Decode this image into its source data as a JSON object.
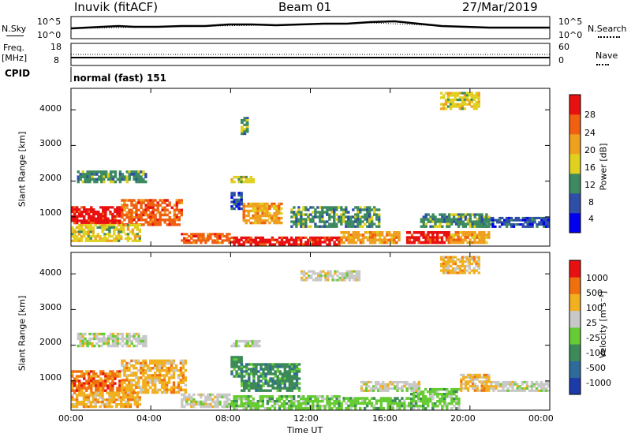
{
  "header": {
    "station": "Inuvik (fitACF)",
    "beam": "Beam 01",
    "date": "27/Mar/2019"
  },
  "top_panels": {
    "nsky_label": "N.Sky",
    "nsky_ticks": [
      "10^5",
      "10^0"
    ],
    "nsearch_label": "N.Search",
    "nsearch_ticks": [
      "10^5",
      "10^0"
    ],
    "freq_label": "Freq.",
    "freq_unit": "[MHz]",
    "freq_ticks": [
      "18",
      "8"
    ],
    "nave_label": "Nave",
    "nave_ticks": [
      "60",
      "0"
    ],
    "cpid_label": "CPID",
    "cpid_value": "normal (fast) 151"
  },
  "chart_data": [
    {
      "type": "heatmap",
      "name": "power",
      "ylabel": "Slant Range [km]",
      "ylim": [
        180,
        4600
      ],
      "yticks": [
        "1000",
        "2000",
        "3000",
        "4000"
      ],
      "colorbar_label": "Power [dB]",
      "colorbar_ticks": [
        "28",
        "24",
        "20",
        "16",
        "12",
        "8",
        "4"
      ],
      "colors": [
        "#0000ee",
        "#2e4ea8",
        "#3d8a60",
        "#e0d020",
        "#f0a020",
        "#f06010",
        "#e81010"
      ],
      "blobs": [
        {
          "t0": 0.0,
          "t1": 2.5,
          "r0": 800,
          "r1": 1300,
          "level": 6
        },
        {
          "t0": 2.5,
          "t1": 5.6,
          "r0": 750,
          "r1": 1500,
          "level": 5
        },
        {
          "t0": 0.0,
          "t1": 3.5,
          "r0": 300,
          "r1": 800,
          "level": 3
        },
        {
          "t0": 0.3,
          "t1": 3.8,
          "r0": 1950,
          "r1": 2300,
          "level": 2
        },
        {
          "t0": 8.0,
          "t1": 9.2,
          "r0": 1950,
          "r1": 2150,
          "level": 3
        },
        {
          "t0": 8.6,
          "t1": 10.6,
          "r0": 800,
          "r1": 1400,
          "level": 4
        },
        {
          "t0": 8.0,
          "t1": 13.5,
          "r0": 200,
          "r1": 450,
          "level": 6
        },
        {
          "t0": 13.5,
          "t1": 16.5,
          "r0": 250,
          "r1": 600,
          "level": 4
        },
        {
          "t0": 16.8,
          "t1": 19.0,
          "r0": 250,
          "r1": 600,
          "level": 6
        },
        {
          "t0": 19.0,
          "t1": 21.0,
          "r0": 250,
          "r1": 600,
          "level": 4
        },
        {
          "t0": 20.5,
          "t1": 24.0,
          "r0": 700,
          "r1": 1000,
          "level": 1
        },
        {
          "t0": 17.5,
          "t1": 21.0,
          "r0": 700,
          "r1": 1100,
          "level": 2
        },
        {
          "t0": 11.0,
          "t1": 15.5,
          "r0": 700,
          "r1": 1300,
          "level": 2
        },
        {
          "t0": 8.0,
          "t1": 8.6,
          "r0": 1200,
          "r1": 1700,
          "level": 1
        },
        {
          "t0": 5.5,
          "t1": 8.0,
          "r0": 250,
          "r1": 550,
          "level": 5
        },
        {
          "t0": 18.5,
          "t1": 20.5,
          "r0": 4000,
          "r1": 4500,
          "level": 3
        },
        {
          "t0": 8.5,
          "t1": 8.9,
          "r0": 3300,
          "r1": 3800,
          "level": 2
        }
      ]
    },
    {
      "type": "heatmap",
      "name": "velocity",
      "ylabel": "Slant Range [km]",
      "ylim": [
        180,
        4600
      ],
      "yticks": [
        "1000",
        "2000",
        "3000",
        "4000"
      ],
      "xlabel": "Time UT",
      "xticks": [
        "00:00",
        "04:00",
        "08:00",
        "12:00",
        "16:00",
        "20:00",
        "00:00"
      ],
      "colorbar_label": "Velocity [m s⁻¹]",
      "colorbar_ticks": [
        "1000",
        "500",
        "100",
        "25",
        "-25",
        "-100",
        "-500",
        "-1000"
      ],
      "colors": [
        "#1c3aa8",
        "#2e6a9a",
        "#3c8a58",
        "#66cc33",
        "#c8c8c8",
        "#f0b020",
        "#f07010",
        "#e81010"
      ],
      "blobs": [
        {
          "t0": 0.0,
          "t1": 2.5,
          "r0": 700,
          "r1": 1300,
          "level": 6
        },
        {
          "t0": 2.5,
          "t1": 5.8,
          "r0": 650,
          "r1": 1600,
          "level": 5
        },
        {
          "t0": 0.0,
          "t1": 3.5,
          "r0": 250,
          "r1": 700,
          "level": 5
        },
        {
          "t0": 0.3,
          "t1": 3.8,
          "r0": 1950,
          "r1": 2350,
          "level": 4
        },
        {
          "t0": 8.0,
          "t1": 9.5,
          "r0": 1950,
          "r1": 2150,
          "level": 4
        },
        {
          "t0": 8.5,
          "t1": 11.5,
          "r0": 700,
          "r1": 1500,
          "level": 2
        },
        {
          "t0": 8.0,
          "t1": 8.6,
          "r0": 1100,
          "r1": 1700,
          "level": 2
        },
        {
          "t0": 8.0,
          "t1": 13.5,
          "r0": 200,
          "r1": 600,
          "level": 3
        },
        {
          "t0": 13.5,
          "t1": 17.0,
          "r0": 200,
          "r1": 550,
          "level": 3
        },
        {
          "t0": 17.0,
          "t1": 19.5,
          "r0": 200,
          "r1": 800,
          "level": 3
        },
        {
          "t0": 14.5,
          "t1": 17.5,
          "r0": 700,
          "r1": 1000,
          "level": 4
        },
        {
          "t0": 19.5,
          "t1": 21.0,
          "r0": 700,
          "r1": 1200,
          "level": 5
        },
        {
          "t0": 21.0,
          "t1": 24.0,
          "r0": 700,
          "r1": 1000,
          "level": 4
        },
        {
          "t0": 5.5,
          "t1": 8.0,
          "r0": 250,
          "r1": 650,
          "level": 4
        },
        {
          "t0": 18.5,
          "t1": 20.5,
          "r0": 4000,
          "r1": 4500,
          "level": 5
        },
        {
          "t0": 11.5,
          "t1": 14.5,
          "r0": 3800,
          "r1": 4100,
          "level": 4
        }
      ]
    }
  ]
}
